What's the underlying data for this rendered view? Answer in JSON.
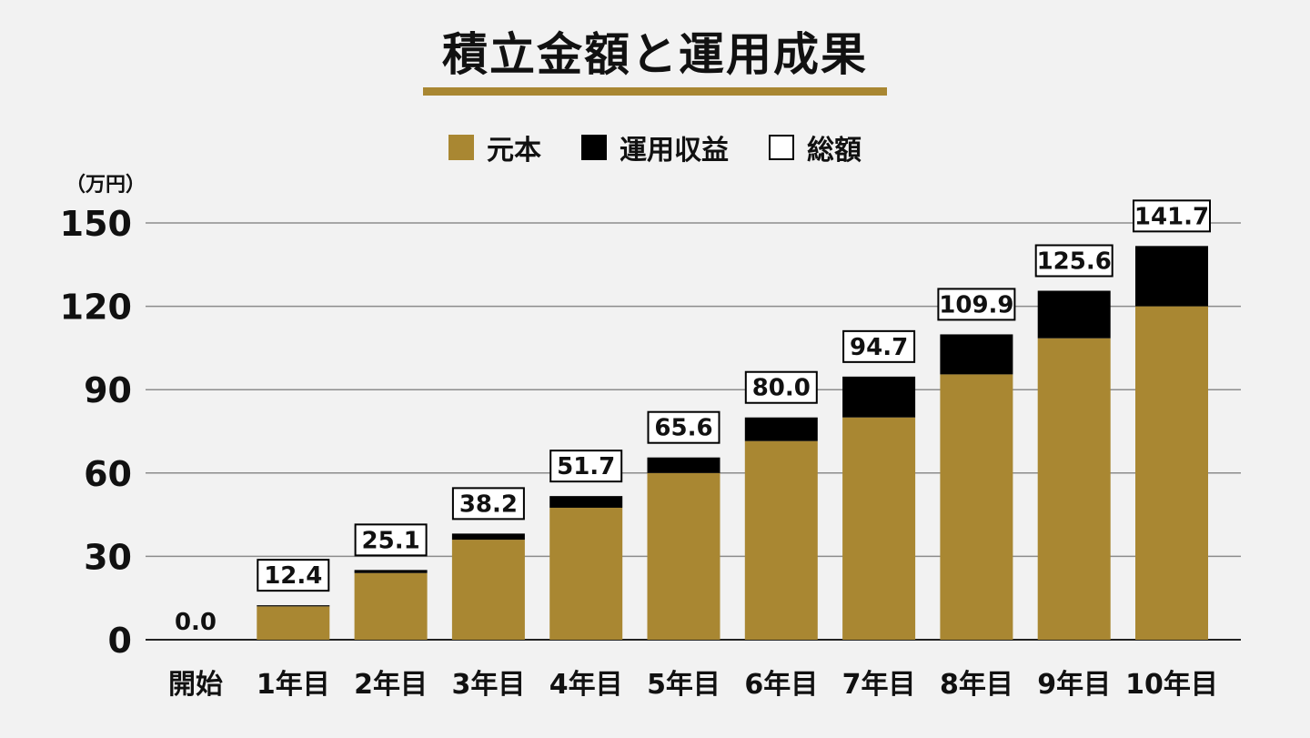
{
  "colors": {
    "principal": "#a98732",
    "gain": "#000000",
    "total_box_fill": "#ffffff",
    "grid": "#8c8c8c",
    "background": "#f2f2f2",
    "accent": "#a98732"
  },
  "title": "積立金額と運用成果",
  "legend": [
    {
      "label": "元本",
      "color": "#a98732",
      "outlined": false
    },
    {
      "label": "運用収益",
      "color": "#000000",
      "outlined": false
    },
    {
      "label": "総額",
      "color": "#ffffff",
      "outlined": true
    }
  ],
  "chart_data": {
    "type": "bar",
    "stacked": true,
    "unit_label": "（万円）",
    "categories": [
      "開始",
      "1年目",
      "2年目",
      "3年目",
      "4年目",
      "5年目",
      "6年目",
      "7年目",
      "8年目",
      "9年目",
      "10年目"
    ],
    "series": [
      {
        "name": "元本",
        "values": [
          0,
          12,
          24,
          36,
          47.5,
          60,
          71.5,
          80,
          95.5,
          108.5,
          120
        ]
      },
      {
        "name": "運用収益",
        "values": [
          0,
          0.4,
          1.1,
          2.2,
          4.2,
          5.6,
          8.5,
          14.7,
          14.4,
          17.1,
          21.7
        ]
      }
    ],
    "totals": [
      0.0,
      12.4,
      25.1,
      38.2,
      51.7,
      65.6,
      80.0,
      94.7,
      109.9,
      125.6,
      141.7
    ],
    "total_labels": [
      "0.0",
      "12.4",
      "25.1",
      "38.2",
      "51.7",
      "65.6",
      "80.0",
      "94.7",
      "109.9",
      "125.6",
      "141.7"
    ],
    "y_ticks": [
      0,
      30,
      60,
      90,
      120,
      150
    ],
    "ylim": [
      0,
      150
    ],
    "grid": true,
    "legend_position": "top-center"
  }
}
